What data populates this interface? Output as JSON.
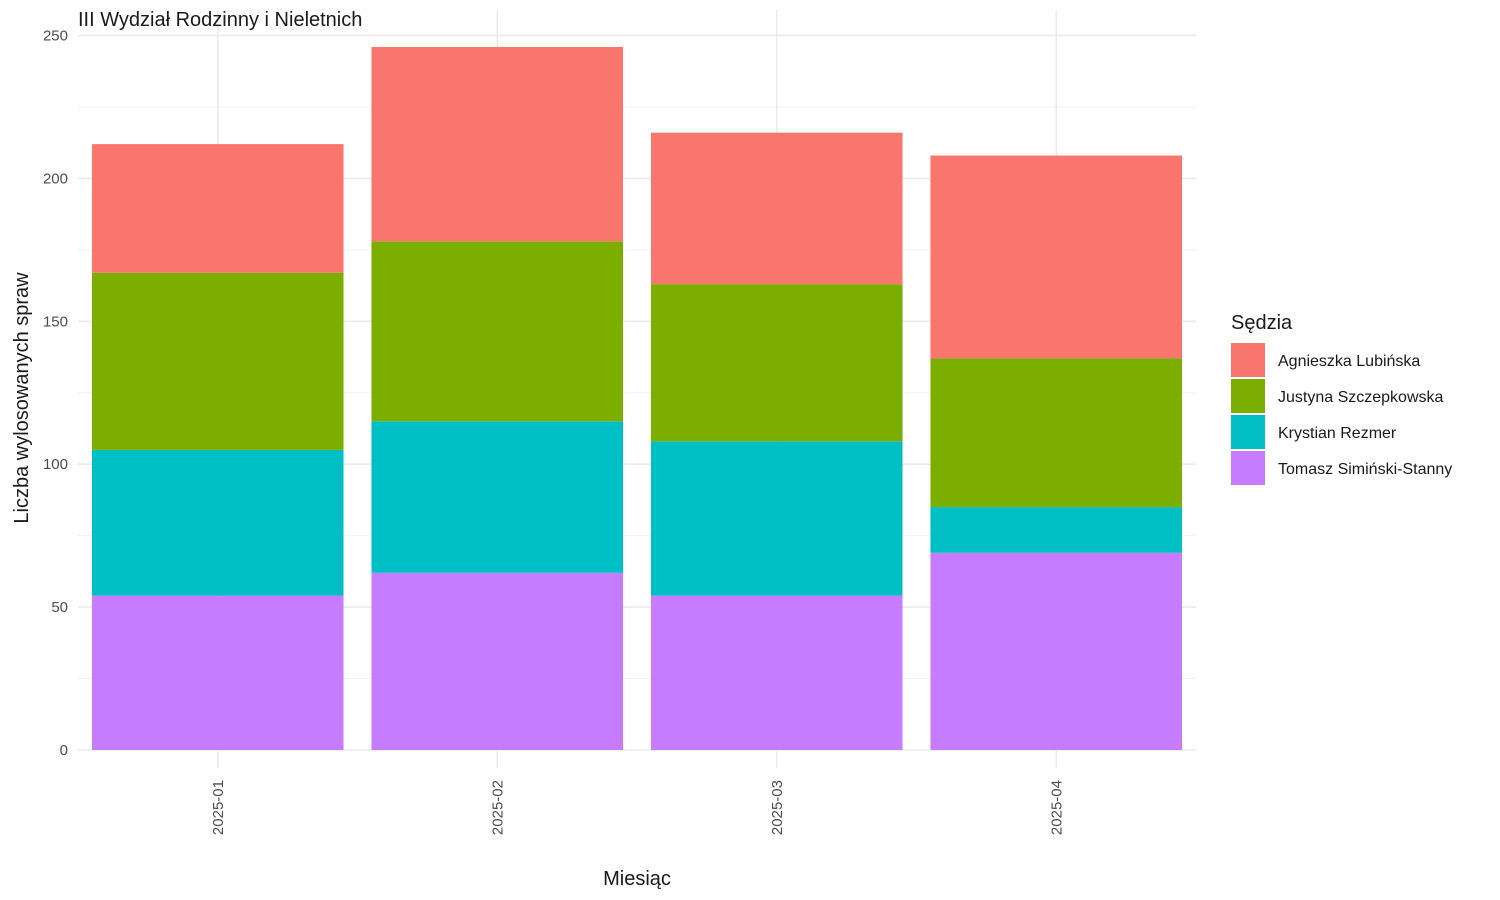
{
  "chart_data": {
    "type": "bar",
    "stacked": true,
    "title": "III Wydział Rodzinny i Nieletnich",
    "xlabel": "Miesiąc",
    "ylabel": "Liczba wylosowanych spraw",
    "ylim": [
      0,
      250
    ],
    "yticks": [
      0,
      50,
      100,
      150,
      200,
      250
    ],
    "grid": true,
    "legend_position": "right",
    "legend_title": "Sędzia",
    "categories": [
      "2025-01",
      "2025-02",
      "2025-03",
      "2025-04"
    ],
    "series": [
      {
        "name": "Tomasz Simiński-Stanny",
        "color": "#C77CFF",
        "values": [
          54,
          62,
          54,
          69
        ]
      },
      {
        "name": "Krystian Rezmer",
        "color": "#00BFC4",
        "values": [
          51,
          53,
          54,
          16
        ]
      },
      {
        "name": "Justyna Szczepkowska",
        "color": "#7CAE00",
        "values": [
          62,
          63,
          55,
          52
        ]
      },
      {
        "name": "Agnieszka Lubińska",
        "color": "#F8766D",
        "values": [
          45,
          68,
          53,
          71
        ]
      }
    ],
    "legend_order": [
      "Agnieszka Lubińska",
      "Justyna Szczepkowska",
      "Krystian Rezmer",
      "Tomasz Simiński-Stanny"
    ]
  }
}
